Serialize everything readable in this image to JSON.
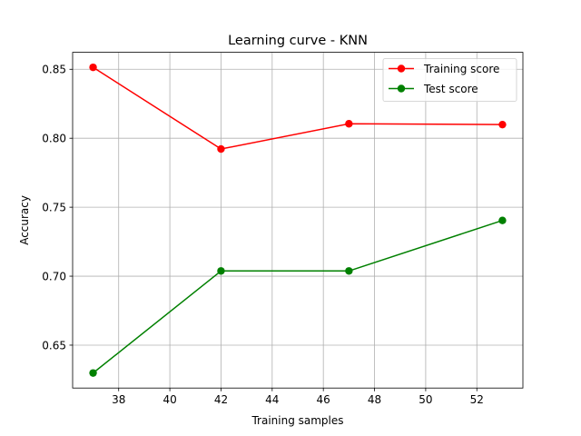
{
  "chart_data": {
    "type": "line",
    "title": "Learning curve - KNN",
    "xlabel": "Training samples",
    "ylabel": "Accuracy",
    "x": [
      37,
      42,
      47,
      53
    ],
    "xlim": [
      36.2,
      53.8
    ],
    "ylim": [
      0.6189,
      0.8623
    ],
    "xticks": [
      38,
      40,
      42,
      44,
      46,
      48,
      50,
      52
    ],
    "yticks": [
      0.65,
      0.7,
      0.75,
      0.8,
      0.85
    ],
    "yticks_labels": [
      "0.65",
      "0.70",
      "0.75",
      "0.80",
      "0.85"
    ],
    "grid": true,
    "legend_position": "top-right",
    "series": [
      {
        "name": "Training score",
        "color": "#ff0000",
        "values": [
          0.8514,
          0.7922,
          0.8105,
          0.8099
        ]
      },
      {
        "name": "Test score",
        "color": "#008000",
        "values": [
          0.6298,
          0.7038,
          0.7038,
          0.7404
        ]
      }
    ]
  }
}
